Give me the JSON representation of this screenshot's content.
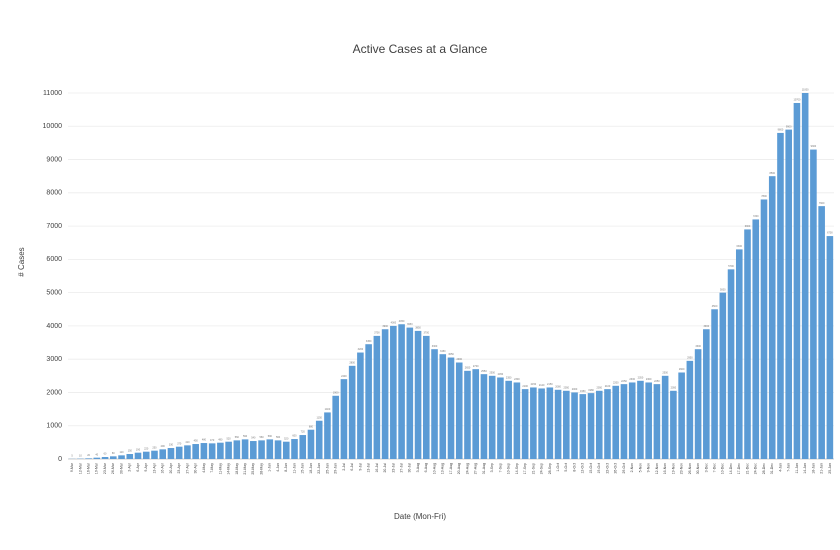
{
  "chart_data": {
    "type": "bar",
    "title": "Active Cases at a Glance",
    "x_label": "Date (Mon-Fri)",
    "y_label": "# Cases",
    "categories": [
      "9-Mar",
      "12-Mar",
      "16-Mar",
      "19-Mar",
      "23-Mar",
      "26-Mar",
      "30-Mar",
      "2-Apr",
      "6-Apr",
      "9-Apr",
      "13-Apr",
      "16-Apr",
      "20-Apr",
      "23-Apr",
      "27-Apr",
      "30-Apr",
      "4-May",
      "7-May",
      "11-May",
      "14-May",
      "18-May",
      "21-May",
      "25-May",
      "28-May",
      "1-Jun",
      "4-Jun",
      "8-Jun",
      "11-Jun",
      "15-Jun",
      "18-Jun",
      "22-Jun",
      "25-Jun",
      "29-Jun",
      "2-Jul",
      "6-Jul",
      "9-Jul",
      "13-Jul",
      "16-Jul",
      "20-Jul",
      "23-Jul",
      "27-Jul",
      "30-Jul",
      "3-Aug",
      "6-Aug",
      "10-Aug",
      "13-Aug",
      "17-Aug",
      "20-Aug",
      "24-Aug",
      "27-Aug",
      "31-Aug",
      "3-Sep",
      "7-Sep",
      "10-Sep",
      "14-Sep",
      "17-Sep",
      "21-Sep",
      "24-Sep",
      "28-Sep",
      "1-Oct",
      "5-Oct",
      "8-Oct",
      "12-Oct",
      "15-Oct",
      "19-Oct",
      "22-Oct",
      "26-Oct",
      "29-Oct",
      "2-Nov",
      "5-Nov",
      "9-Nov",
      "12-Nov",
      "16-Nov",
      "19-Nov",
      "23-Nov",
      "26-Nov",
      "30-Nov",
      "3-Dec",
      "7-Dec",
      "10-Dec",
      "14-Dec",
      "17-Dec",
      "21-Dec",
      "24-Dec",
      "28-Dec",
      "31-Dec",
      "4-Jan",
      "7-Jan",
      "11-Jan",
      "14-Jan",
      "18-Jan",
      "21-Jan",
      "25-Jan"
    ],
    "values": [
      5,
      10,
      20,
      40,
      60,
      80,
      110,
      150,
      190,
      220,
      250,
      290,
      330,
      370,
      410,
      450,
      480,
      470,
      490,
      520,
      560,
      590,
      540,
      560,
      590,
      560,
      520,
      600,
      720,
      880,
      1150,
      1400,
      1900,
      2400,
      2800,
      3200,
      3450,
      3700,
      3900,
      4000,
      4050,
      3950,
      3850,
      3700,
      3300,
      3150,
      3050,
      2900,
      2650,
      2700,
      2550,
      2500,
      2450,
      2350,
      2300,
      2100,
      2150,
      2120,
      2150,
      2080,
      2050,
      2000,
      1950,
      1980,
      2050,
      2100,
      2200,
      2250,
      2300,
      2350,
      2300,
      2250,
      2500,
      2050,
      2600,
      2950,
      3300,
      3900,
      4500,
      5000,
      5700,
      6300,
      6900,
      7200,
      7800,
      8500,
      9800,
      9900,
      10700,
      11000,
      9300,
      7600,
      6700
    ],
    "color": "#5b9bd5",
    "ylim": [
      0,
      11000
    ],
    "yticks": [
      0,
      1000,
      2000,
      3000,
      4000,
      5000,
      6000,
      7000,
      8000,
      9000,
      10000,
      11000
    ],
    "grid": true
  }
}
